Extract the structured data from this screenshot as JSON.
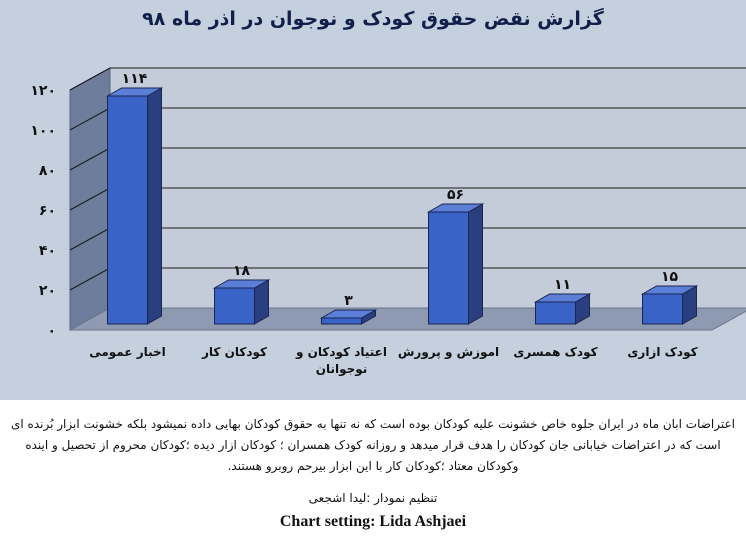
{
  "chart_data": {
    "type": "bar",
    "title": "گزارش نقض حقوق کودک و نوجوان در اذر ماه ۹۸",
    "categories": [
      "اخبار عمومی",
      "کودکان کار",
      "اعتیاد کودکان و نوجوانان",
      "اموزش و پرورش",
      "کودک همسری",
      "کودک ازاری"
    ],
    "category_lines": [
      [
        "اخبار عمومی"
      ],
      [
        "کودکان کار"
      ],
      [
        "اعتیاد کودکان و",
        "نوجوانان"
      ],
      [
        "اموزش و پرورش"
      ],
      [
        "کودک همسری"
      ],
      [
        "کودک ازاری"
      ]
    ],
    "values": [
      114,
      18,
      3,
      56,
      11,
      15
    ],
    "value_labels": [
      "۱۱۴",
      "۱۸",
      "۳",
      "۵۶",
      "۱۱",
      "۱۵"
    ],
    "ylim": [
      0,
      120
    ],
    "yticks": [
      0,
      20,
      40,
      60,
      80,
      100,
      120
    ],
    "ytick_labels": [
      "۰",
      "۲۰",
      "۴۰",
      "۶۰",
      "۸۰",
      "۱۰۰",
      "۱۲۰"
    ],
    "xlabel": "",
    "ylabel": "",
    "grid": true,
    "legend": "none",
    "colors": {
      "bar_front": "#3a63c7",
      "bar_side": "#2a3f80",
      "bar_top": "#5b7ed6",
      "wall": "#c4ccd9",
      "side_wall": "#6f7d9c",
      "floor": "#8e9ab1",
      "background": "#c5d0de",
      "title": "#10204a"
    }
  },
  "caption": "اعتراضات ابان ماه در ایران جلوه خاص خشونت علیه کودکان بوده است که نه تنها به حقوق کودکان بهایی داده نمیشود بلکه خشونت ابزار بُرنده ای است که در اعتراضات خیابانی جان کودکان را هدف قرار میدهد و روزانه کودک همسران ؛ کودکان ازار دیده ؛کودکان محروم از تحصیل و اینده وکودکان معتاد ؛کودکان کار با این ابزار بیرحم روبرو هستند.",
  "credit_fa": "تنظیم نمودار :لیدا اشجعی",
  "credit_en": "Chart setting: Lida Ashjaei"
}
